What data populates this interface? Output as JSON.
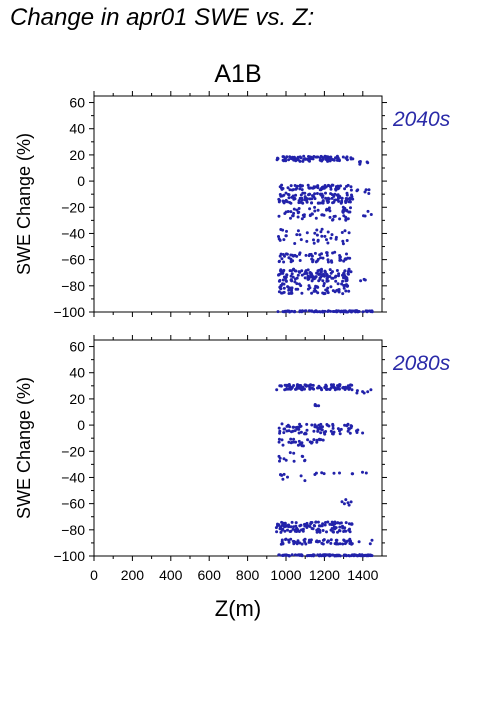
{
  "page_title": "Change in apr01 SWE vs. Z:",
  "chart_data": [
    {
      "type": "scatter",
      "title": "A1B",
      "panel_label": "2040s",
      "xlabel": "",
      "ylabel": "SWE Change (%)",
      "xlim": [
        0,
        1500
      ],
      "ylim": [
        -100,
        65
      ],
      "xticks": [
        0,
        200,
        400,
        600,
        800,
        1000,
        1200,
        1400
      ],
      "yticks": [
        60,
        40,
        20,
        0,
        -20,
        -40,
        -60,
        -80,
        -100
      ],
      "ytick_labels": [
        "60",
        "40",
        "20",
        "0",
        "−20",
        "−40",
        "−60",
        "−80",
        "−100"
      ],
      "show_xtick_labels": false,
      "grid": false,
      "marker_color": "#2222aa",
      "clusters": [
        {
          "x_range": [
            950,
            1350
          ],
          "y_center": 17,
          "y_spread": 2,
          "count": 90
        },
        {
          "x_range": [
            1360,
            1450
          ],
          "y_center": 14,
          "y_spread": 1.5,
          "count": 6
        },
        {
          "x_range": [
            960,
            1350
          ],
          "y_center": -5,
          "y_spread": 2,
          "count": 60
        },
        {
          "x_range": [
            960,
            1350
          ],
          "y_center": -13,
          "y_spread": 4,
          "count": 110
        },
        {
          "x_range": [
            1360,
            1450
          ],
          "y_center": -8,
          "y_spread": 2,
          "count": 6
        },
        {
          "x_range": [
            960,
            1340
          ],
          "y_center": -25,
          "y_spread": 5,
          "count": 60
        },
        {
          "x_range": [
            1400,
            1450
          ],
          "y_center": -25,
          "y_spread": 2,
          "count": 4
        },
        {
          "x_range": [
            960,
            1340
          ],
          "y_center": -42,
          "y_spread": 6,
          "count": 40
        },
        {
          "x_range": [
            960,
            1340
          ],
          "y_center": -58,
          "y_spread": 4,
          "count": 60
        },
        {
          "x_range": [
            960,
            1340
          ],
          "y_center": -72,
          "y_spread": 5,
          "count": 130
        },
        {
          "x_range": [
            960,
            1340
          ],
          "y_center": -82,
          "y_spread": 4,
          "count": 70
        },
        {
          "x_range": [
            1380,
            1450
          ],
          "y_center": -75,
          "y_spread": 2,
          "count": 3
        },
        {
          "x_range": [
            950,
            1450
          ],
          "y_center": -99.5,
          "y_spread": 0.5,
          "count": 90
        }
      ]
    },
    {
      "type": "scatter",
      "title": "",
      "panel_label": "2080s",
      "xlabel": "Z(m)",
      "ylabel": "SWE Change (%)",
      "xlim": [
        0,
        1500
      ],
      "ylim": [
        -100,
        65
      ],
      "xticks": [
        0,
        200,
        400,
        600,
        800,
        1000,
        1200,
        1400
      ],
      "xtick_labels": [
        "0",
        "200",
        "400",
        "600",
        "800",
        "1000",
        "1200",
        "1400"
      ],
      "yticks": [
        60,
        40,
        20,
        0,
        -20,
        -40,
        -60,
        -80,
        -100
      ],
      "ytick_labels": [
        "60",
        "40",
        "20",
        "0",
        "−20",
        "−40",
        "−60",
        "−80",
        "−100"
      ],
      "show_xtick_labels": true,
      "grid": false,
      "marker_color": "#2222aa",
      "clusters": [
        {
          "x_range": [
            950,
            1350
          ],
          "y_center": 29,
          "y_spread": 2,
          "count": 100
        },
        {
          "x_range": [
            1360,
            1450
          ],
          "y_center": 26,
          "y_spread": 1.5,
          "count": 6
        },
        {
          "x_range": [
            1150,
            1200
          ],
          "y_center": 15,
          "y_spread": 1,
          "count": 4
        },
        {
          "x_range": [
            960,
            1350
          ],
          "y_center": -3,
          "y_spread": 4,
          "count": 80
        },
        {
          "x_range": [
            960,
            1200
          ],
          "y_center": -13,
          "y_spread": 3,
          "count": 30
        },
        {
          "x_range": [
            1360,
            1450
          ],
          "y_center": -5,
          "y_spread": 2,
          "count": 4
        },
        {
          "x_range": [
            960,
            1100
          ],
          "y_center": -25,
          "y_spread": 4,
          "count": 12
        },
        {
          "x_range": [
            960,
            1100
          ],
          "y_center": -40,
          "y_spread": 3,
          "count": 8
        },
        {
          "x_range": [
            1150,
            1450
          ],
          "y_center": -37,
          "y_spread": 1,
          "count": 10
        },
        {
          "x_range": [
            1250,
            1350
          ],
          "y_center": -60,
          "y_spread": 4,
          "count": 6
        },
        {
          "x_range": [
            950,
            1350
          ],
          "y_center": -78,
          "y_spread": 4,
          "count": 120
        },
        {
          "x_range": [
            950,
            1350
          ],
          "y_center": -89,
          "y_spread": 2,
          "count": 60
        },
        {
          "x_range": [
            1380,
            1450
          ],
          "y_center": -90,
          "y_spread": 2,
          "count": 3
        },
        {
          "x_range": [
            950,
            1450
          ],
          "y_center": -99.5,
          "y_spread": 0.5,
          "count": 110
        }
      ]
    }
  ]
}
